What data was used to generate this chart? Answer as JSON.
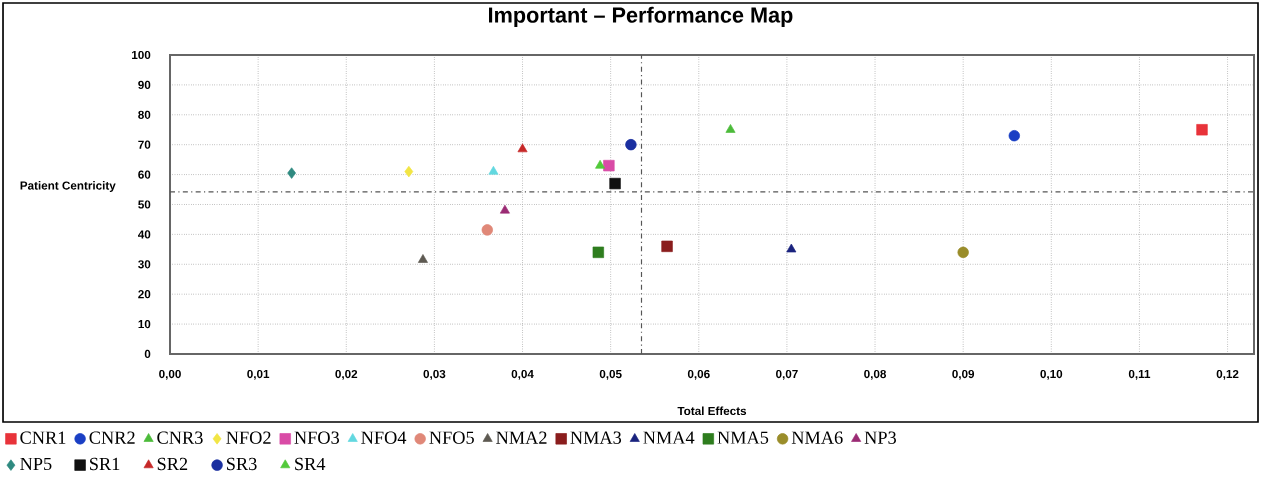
{
  "chart_data": {
    "type": "scatter",
    "title": "Important – Performance Map",
    "xlabel": "Total Effects",
    "ylabel": "Patient Centricity",
    "xlim": [
      0,
      0.123
    ],
    "ylim": [
      0,
      100
    ],
    "xticks": [
      {
        "value": 0,
        "label": "0,00"
      },
      {
        "value": 0.01,
        "label": "0,01"
      },
      {
        "value": 0.02,
        "label": "0,02"
      },
      {
        "value": 0.03,
        "label": "0,03"
      },
      {
        "value": 0.04,
        "label": "0,04"
      },
      {
        "value": 0.05,
        "label": "0,05"
      },
      {
        "value": 0.06,
        "label": "0,06"
      },
      {
        "value": 0.07,
        "label": "0,07"
      },
      {
        "value": 0.08,
        "label": "0,08"
      },
      {
        "value": 0.09,
        "label": "0,09"
      },
      {
        "value": 0.1,
        "label": "0,10"
      },
      {
        "value": 0.11,
        "label": "0,11"
      },
      {
        "value": 0.12,
        "label": "0,12"
      }
    ],
    "yticks": [
      0,
      10,
      20,
      30,
      40,
      50,
      60,
      70,
      80,
      90,
      100
    ],
    "grid": true,
    "legend": "bottom",
    "ref_lines": [
      {
        "axis": "x",
        "value": 0.0535,
        "color": "#555555"
      },
      {
        "axis": "y",
        "value": 54.2,
        "color": "#555555"
      }
    ],
    "series": [
      {
        "name": "CNR1",
        "color": "#e8333a",
        "marker": "square",
        "x": [
          0.1171
        ],
        "values": [
          75
        ]
      },
      {
        "name": "CNR2",
        "color": "#1a3fc4",
        "marker": "circle",
        "x": [
          0.0958
        ],
        "values": [
          73
        ]
      },
      {
        "name": "CNR3",
        "color": "#4cbb3a",
        "marker": "triangle",
        "x": [
          0.0636
        ],
        "values": [
          75
        ]
      },
      {
        "name": "NFO2",
        "color": "#f2e544",
        "marker": "diamond",
        "x": [
          0.0271
        ],
        "values": [
          61
        ]
      },
      {
        "name": "NFO3",
        "color": "#d94ba6",
        "marker": "square",
        "x": [
          0.0498
        ],
        "values": [
          63
        ]
      },
      {
        "name": "NFO4",
        "color": "#62d8e0",
        "marker": "triangle",
        "x": [
          0.0367
        ],
        "values": [
          61
        ]
      },
      {
        "name": "NFO5",
        "color": "#e08878",
        "marker": "circle",
        "x": [
          0.036
        ],
        "values": [
          41.5
        ]
      },
      {
        "name": "NMA2",
        "color": "#5e5a52",
        "marker": "triangle",
        "x": [
          0.0287
        ],
        "values": [
          31.5
        ]
      },
      {
        "name": "NMA3",
        "color": "#8a1d1d",
        "marker": "square",
        "x": [
          0.0564
        ],
        "values": [
          36
        ]
      },
      {
        "name": "NMA4",
        "color": "#1a237e",
        "marker": "triangle",
        "x": [
          0.0705
        ],
        "values": [
          35
        ]
      },
      {
        "name": "NMA5",
        "color": "#2e7d1e",
        "marker": "square",
        "x": [
          0.0486
        ],
        "values": [
          34
        ]
      },
      {
        "name": "NMA6",
        "color": "#9a8d2a",
        "marker": "circle",
        "x": [
          0.09
        ],
        "values": [
          34
        ]
      },
      {
        "name": "NP3",
        "color": "#9b2b74",
        "marker": "triangle",
        "x": [
          0.038
        ],
        "values": [
          48
        ]
      },
      {
        "name": "NP5",
        "color": "#2f8a80",
        "marker": "diamond",
        "x": [
          0.0138
        ],
        "values": [
          60.5
        ]
      },
      {
        "name": "SR1",
        "color": "#111111",
        "marker": "square",
        "x": [
          0.0505
        ],
        "values": [
          57
        ]
      },
      {
        "name": "SR2",
        "color": "#c62828",
        "marker": "triangle",
        "x": [
          0.04
        ],
        "values": [
          68.5
        ]
      },
      {
        "name": "SR3",
        "color": "#1a2fa0",
        "marker": "circle",
        "x": [
          0.0523
        ],
        "values": [
          70
        ]
      },
      {
        "name": "SR4",
        "color": "#52c93a",
        "marker": "triangle",
        "x": [
          0.0488
        ],
        "values": [
          63
        ]
      }
    ]
  }
}
